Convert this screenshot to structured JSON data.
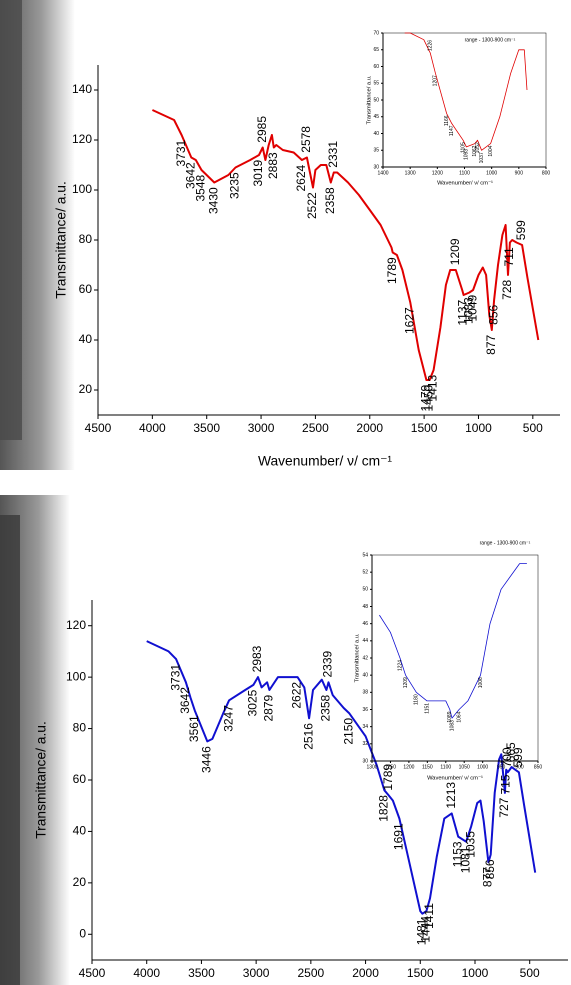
{
  "chart_data": [
    {
      "type": "line",
      "xlabel": "Wavenumber/ ν/ cm⁻¹",
      "ylabel": "Transmittance/ a.u.",
      "xlim": [
        4500,
        250
      ],
      "ylim": [
        10,
        150
      ],
      "xticks": [
        4500,
        4000,
        3500,
        3000,
        2500,
        2000,
        1500,
        1000,
        500
      ],
      "yticks": [
        20,
        40,
        60,
        80,
        100,
        120,
        140
      ],
      "x": [
        4000,
        3800,
        3731,
        3642,
        3600,
        3548,
        3430,
        3300,
        3235,
        3100,
        3019,
        2985,
        2960,
        2930,
        2900,
        2883,
        2860,
        2800,
        2700,
        2624,
        2578,
        2522,
        2500,
        2450,
        2400,
        2358,
        2331,
        2300,
        2200,
        2100,
        2000,
        1900,
        1800,
        1789,
        1750,
        1700,
        1627,
        1550,
        1479,
        1450,
        1413,
        1350,
        1300,
        1260,
        1209,
        1150,
        1137,
        1083,
        1049,
        1000,
        960,
        930,
        900,
        877,
        856,
        820,
        780,
        750,
        728,
        711,
        690,
        650,
        599,
        550,
        450
      ],
      "series": [
        {
          "color": "#e00000",
          "values": [
            132,
            128,
            122,
            113,
            112,
            108,
            103,
            106,
            109,
            112,
            114,
            117,
            112,
            118,
            122,
            117,
            118,
            116,
            115,
            112,
            113,
            101,
            108,
            110,
            110,
            103,
            107,
            107,
            103,
            98,
            92,
            86,
            77,
            75,
            74,
            68,
            55,
            36,
            24,
            24,
            28,
            45,
            62,
            68,
            68,
            60,
            58,
            59,
            60,
            66,
            69,
            66,
            50,
            44,
            56,
            70,
            82,
            86,
            66,
            79,
            80,
            79,
            78,
            65,
            40
          ]
        }
      ],
      "peak_labels": [
        3731,
        3642,
        3548,
        3430,
        3235,
        3019,
        2985,
        2883,
        2624,
        2578,
        2522,
        2358,
        2331,
        1789,
        1627,
        1479,
        1450,
        1413,
        1209,
        1137,
        1083,
        1049,
        877,
        856,
        728,
        711,
        599
      ]
    },
    {
      "type": "line",
      "title": "range - 1300-900 cm⁻¹",
      "xlabel": "Wavenumber/ ν/ cm⁻¹",
      "ylabel": "Transmittance/ a.u.",
      "xlim": [
        1400,
        800
      ],
      "ylim": [
        30,
        70
      ],
      "xticks": [
        1400,
        1300,
        1200,
        1100,
        1000,
        900,
        800
      ],
      "yticks": [
        30,
        35,
        40,
        45,
        50,
        55,
        60,
        65,
        70
      ],
      "x": [
        1320,
        1300,
        1250,
        1226,
        1207,
        1166,
        1147,
        1105,
        1093,
        1062,
        1052,
        1037,
        1004,
        970,
        930,
        900,
        880,
        870
      ],
      "series": [
        {
          "color": "#e00000",
          "values": [
            70,
            70,
            68,
            64,
            58,
            46,
            43,
            38,
            36,
            37,
            38,
            35,
            37,
            45,
            58,
            65,
            65,
            53
          ]
        }
      ],
      "peak_labels": [
        1226,
        1207,
        1166,
        1147,
        1105,
        1093,
        1062,
        1052,
        1037,
        1004
      ]
    },
    {
      "type": "line",
      "ylabel": "Transmittance/ a.u.",
      "xlim": [
        4500,
        150
      ],
      "ylim": [
        -10,
        130
      ],
      "xticks": [
        4500,
        4000,
        3500,
        3000,
        2500,
        2000,
        1500,
        1000,
        500
      ],
      "yticks": [
        0,
        20,
        40,
        60,
        80,
        100,
        120
      ],
      "x": [
        4000,
        3800,
        3731,
        3642,
        3600,
        3561,
        3446,
        3400,
        3300,
        3247,
        3100,
        3025,
        2983,
        2950,
        2900,
        2879,
        2800,
        2700,
        2622,
        2560,
        2516,
        2480,
        2400,
        2358,
        2339,
        2300,
        2200,
        2150,
        2000,
        1900,
        1828,
        1789,
        1750,
        1691,
        1600,
        1500,
        1481,
        1444,
        1411,
        1350,
        1280,
        1213,
        1153,
        1081,
        1035,
        980,
        950,
        920,
        877,
        856,
        820,
        780,
        760,
        727,
        715,
        700,
        665,
        599,
        550,
        450
      ],
      "series": [
        {
          "color": "#1010d0",
          "values": [
            114,
            110,
            107,
            98,
            92,
            87,
            75,
            76,
            86,
            91,
            95,
            97,
            100,
            96,
            98,
            95,
            100,
            100,
            100,
            96,
            84,
            95,
            99,
            95,
            98,
            93,
            88,
            86,
            77,
            66,
            56,
            54,
            52,
            45,
            28,
            9,
            8,
            9,
            14,
            30,
            45,
            47,
            38,
            36,
            42,
            51,
            52,
            44,
            28,
            31,
            55,
            68,
            70,
            55,
            64,
            63,
            65,
            63,
            50,
            24
          ]
        }
      ],
      "peak_labels": [
        3731,
        3642,
        3561,
        3446,
        3247,
        3025,
        2983,
        2879,
        2622,
        2516,
        2358,
        2339,
        2150,
        1828,
        1789,
        1691,
        1481,
        1444,
        1411,
        1213,
        1153,
        1081,
        1035,
        877,
        856,
        727,
        715,
        700,
        665,
        599
      ]
    },
    {
      "type": "line",
      "title": "range - 1300-900 cm⁻¹",
      "xlabel": "Wavenumber/ ν/ cm⁻¹",
      "ylabel": "Transmittance/ a.u.",
      "xlim": [
        1300,
        850
      ],
      "ylim": [
        30,
        54
      ],
      "xticks": [
        1300,
        1250,
        1200,
        1150,
        1100,
        1050,
        1000,
        950,
        900,
        850
      ],
      "yticks": [
        30,
        32,
        34,
        36,
        38,
        40,
        42,
        44,
        46,
        48,
        50,
        52,
        54
      ],
      "x": [
        1280,
        1250,
        1224,
        1209,
        1180,
        1151,
        1100,
        1089,
        1083,
        1064,
        1040,
        1006,
        980,
        950,
        900,
        880
      ],
      "series": [
        {
          "color": "#1010d0",
          "values": [
            47,
            45,
            42,
            40,
            38,
            37,
            37,
            36,
            35,
            36,
            37,
            40,
            46,
            50,
            53,
            53
          ]
        }
      ],
      "peak_labels": [
        1224,
        1209,
        1180,
        1151,
        1089,
        1083,
        1064,
        1006
      ]
    }
  ]
}
